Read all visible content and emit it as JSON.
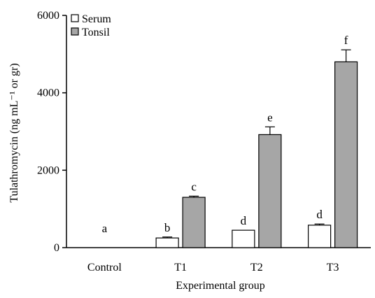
{
  "chart_data": {
    "type": "bar",
    "xlabel": "Experimental group",
    "ylabel": "Tulathromycin (ng mL⁻¹ or gr)",
    "ylim": [
      0,
      6000
    ],
    "yticks": [
      0,
      2000,
      4000,
      6000
    ],
    "categories": [
      "Control",
      "T1",
      "T2",
      "T3"
    ],
    "series": [
      {
        "name": "Serum",
        "color": "#ffffff",
        "values": [
          0,
          250,
          450,
          580
        ],
        "errors": [
          0,
          25,
          0,
          30
        ],
        "labels": [
          "a",
          "b",
          "d",
          "d"
        ]
      },
      {
        "name": "Tonsil",
        "color": "#a6a6a6",
        "values": [
          0,
          1300,
          2920,
          4800
        ],
        "errors": [
          0,
          30,
          200,
          310
        ],
        "labels": [
          "",
          "c",
          "e",
          "f"
        ]
      }
    ],
    "legend": "top-left",
    "grid": false
  }
}
